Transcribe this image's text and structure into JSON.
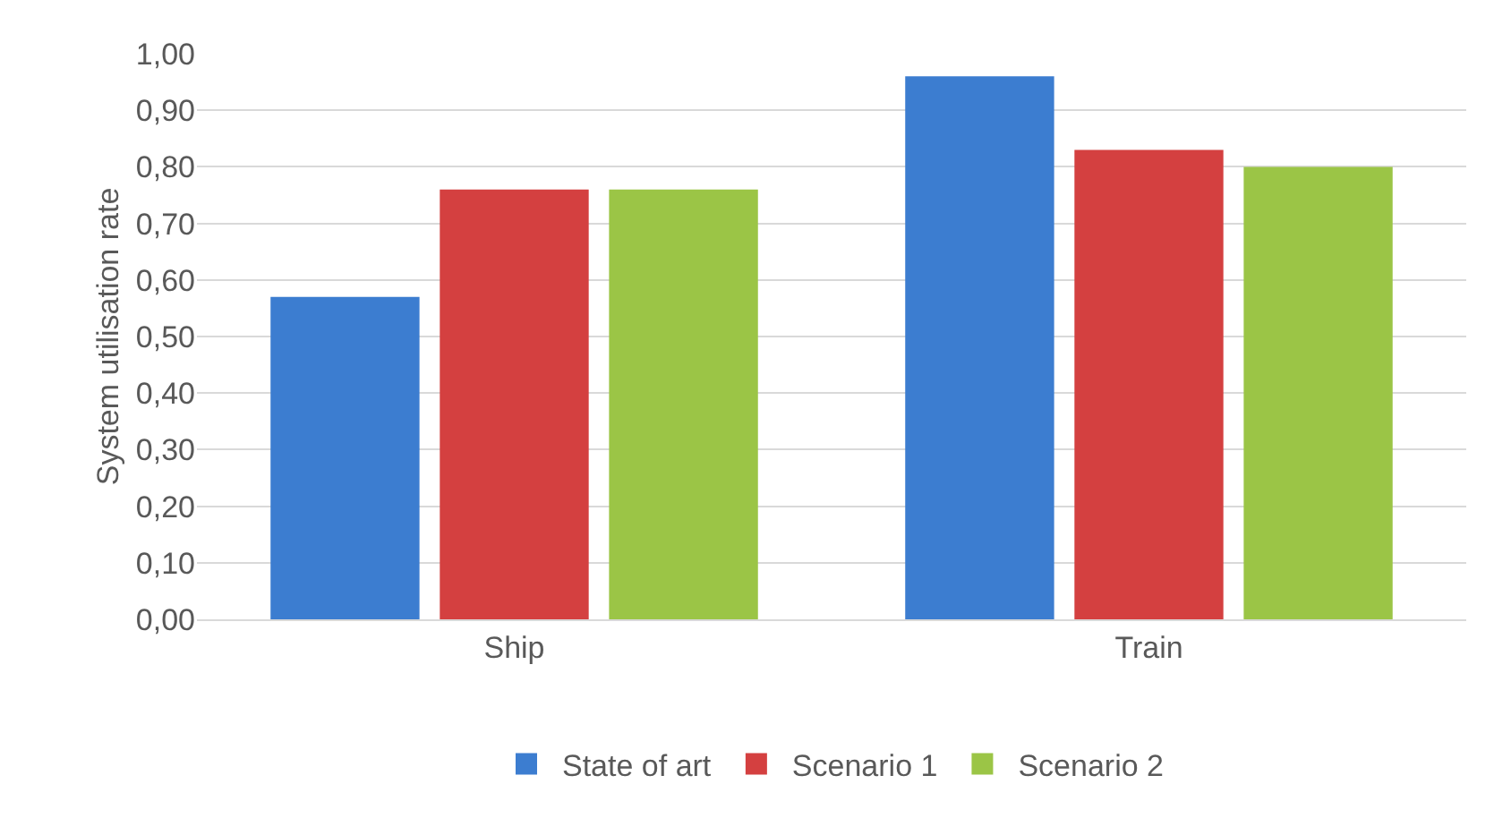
{
  "chart_data": {
    "type": "bar",
    "ylabel": "System utilisation rate",
    "categories": [
      "Ship",
      "Train"
    ],
    "series": [
      {
        "name": "State of art",
        "color": "#3c7dd0",
        "values": [
          0.57,
          0.96
        ]
      },
      {
        "name": "Scenario 1",
        "color": "#d44040",
        "values": [
          0.76,
          0.83
        ]
      },
      {
        "name": "Scenario 2",
        "color": "#9bc546",
        "values": [
          0.76,
          0.8
        ]
      }
    ],
    "ylim": [
      0,
      1
    ],
    "yticks": [
      {
        "value": 0,
        "label": "0,00"
      },
      {
        "value": 0.1,
        "label": "0,10"
      },
      {
        "value": 0.2,
        "label": "0,20"
      },
      {
        "value": 0.3,
        "label": "0,30"
      },
      {
        "value": 0.4,
        "label": "0,40"
      },
      {
        "value": 0.5,
        "label": "0,50"
      },
      {
        "value": 0.6,
        "label": "0,60"
      },
      {
        "value": 0.7,
        "label": "0,70"
      },
      {
        "value": 0.8,
        "label": "0,80"
      },
      {
        "value": 0.9,
        "label": "0,90"
      },
      {
        "value": 1,
        "label": "1,00"
      }
    ],
    "grid": "y",
    "legend": "bottom"
  }
}
